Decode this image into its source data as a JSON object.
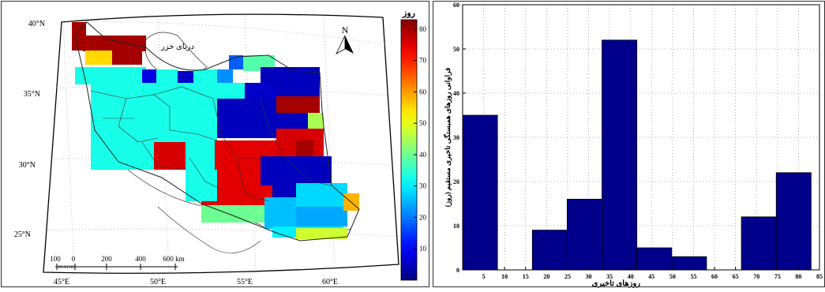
{
  "chart_data": [
    {
      "type": "heatmap",
      "title": "",
      "map": {
        "sea_label": "دریای خزر",
        "north_label": "N",
        "lat_ticks": [
          "40°N",
          "35°N",
          "30°N",
          "25°N"
        ],
        "lon_ticks": [
          "45°E",
          "50°E",
          "55°E",
          "60°E"
        ],
        "scalebar_ticks": [
          "100",
          "0",
          "200",
          "400",
          "600 km"
        ]
      },
      "colorbar": {
        "label": "روز",
        "ticks": [
          10,
          20,
          30,
          40,
          50,
          60,
          70,
          80
        ],
        "range": [
          0,
          83
        ],
        "colormap": "jet"
      }
    },
    {
      "type": "bar",
      "title": "",
      "xlabel": "روزهای تاخیری",
      "ylabel": "فراوانی روزهای همبستگی تاخیری مستقیم (روز)",
      "xlim": [
        0,
        85
      ],
      "ylim": [
        0,
        60
      ],
      "x_ticks": [
        5,
        10,
        15,
        20,
        25,
        30,
        35,
        40,
        45,
        50,
        55,
        60,
        65,
        70,
        75,
        80,
        85
      ],
      "y_ticks": [
        0,
        10,
        20,
        30,
        40,
        50,
        60
      ],
      "bin_width": 8.3,
      "bins": [
        {
          "start": 0,
          "end": 8.3,
          "value": 35
        },
        {
          "start": 8.3,
          "end": 16.6,
          "value": 0
        },
        {
          "start": 16.6,
          "end": 24.9,
          "value": 9
        },
        {
          "start": 24.9,
          "end": 33.2,
          "value": 16
        },
        {
          "start": 33.2,
          "end": 41.5,
          "value": 52
        },
        {
          "start": 41.5,
          "end": 49.8,
          "value": 5
        },
        {
          "start": 49.8,
          "end": 58.1,
          "value": 3
        },
        {
          "start": 58.1,
          "end": 66.4,
          "value": 0
        },
        {
          "start": 66.4,
          "end": 74.7,
          "value": 12
        },
        {
          "start": 74.7,
          "end": 83.0,
          "value": 22
        }
      ],
      "bar_color": "#00008b",
      "grid": true
    }
  ]
}
